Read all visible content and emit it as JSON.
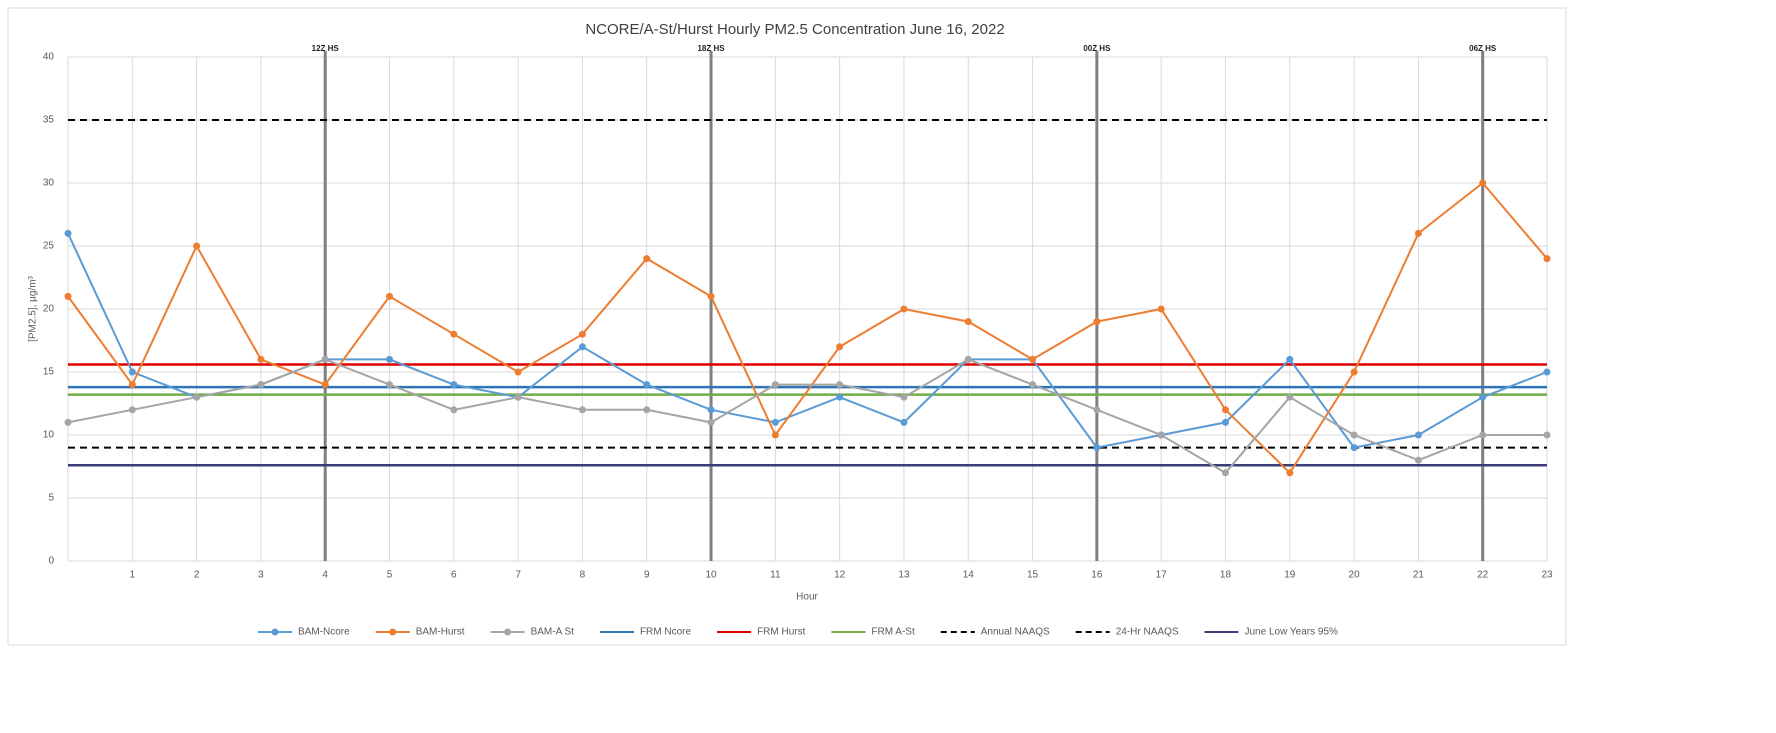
{
  "chart_data": {
    "type": "line",
    "title": "NCORE/A-St/Hurst Hourly PM2.5 Concentration June 16, 2022",
    "x_label": "Hour",
    "y_label": "[PM2.5], µg/m³",
    "x": [
      0,
      1,
      2,
      3,
      4,
      5,
      6,
      7,
      8,
      9,
      10,
      11,
      12,
      13,
      14,
      15,
      16,
      17,
      18,
      19,
      20,
      21,
      22,
      23
    ],
    "xlim": [
      0,
      23
    ],
    "xticks": [
      1,
      2,
      3,
      4,
      5,
      6,
      7,
      8,
      9,
      10,
      11,
      12,
      13,
      14,
      15,
      16,
      17,
      18,
      19,
      20,
      21,
      22,
      23
    ],
    "ylim": [
      0,
      40
    ],
    "yticks": [
      0,
      5,
      10,
      15,
      20,
      25,
      30,
      35,
      40
    ],
    "grid": true,
    "legend": "bottom",
    "series": [
      {
        "name": "BAM-Ncore",
        "color": "#5b9bd5",
        "values": [
          26,
          15,
          13,
          14,
          16,
          16,
          14,
          13,
          17,
          14,
          12,
          11,
          13,
          11,
          16,
          16,
          9,
          10,
          11,
          16,
          9,
          10,
          13,
          15
        ]
      },
      {
        "name": "BAM-Hurst",
        "color": "#ed7d31",
        "values": [
          21,
          14,
          25,
          16,
          14,
          21,
          18,
          15,
          18,
          24,
          21,
          10,
          17,
          20,
          19,
          16,
          19,
          20,
          12,
          7,
          15,
          26,
          30,
          24
        ]
      },
      {
        "name": "BAM-A St",
        "color": "#a5a5a5",
        "values": [
          11,
          12,
          13,
          14,
          16,
          14,
          12,
          13,
          12,
          12,
          11,
          14,
          14,
          13,
          16,
          14,
          12,
          10,
          7,
          13,
          10,
          8,
          10,
          10
        ]
      }
    ],
    "reference_lines": [
      {
        "name": "FRM Ncore",
        "color": "#2e75b6",
        "value": 13.8,
        "dashed": false
      },
      {
        "name": "FRM Hurst",
        "color": "#e00000",
        "value": 15.6,
        "dashed": false
      },
      {
        "name": "FRM A-St",
        "color": "#70ad47",
        "value": 13.2,
        "dashed": false
      },
      {
        "name": "Annual NAAQS",
        "color": "#000000",
        "value": 9,
        "dashed": true
      },
      {
        "name": "24-Hr NAAQS",
        "color": "#000000",
        "value": 35,
        "dashed": true
      },
      {
        "name": "June Low Years 95%",
        "color": "#3c3c78",
        "value": 7.6,
        "dashed": false
      }
    ],
    "annotations": [
      {
        "x": 4,
        "label": "12Z HS"
      },
      {
        "x": 10,
        "label": "18Z HS"
      },
      {
        "x": 16,
        "label": "00Z HS"
      },
      {
        "x": 22,
        "label": "06Z HS"
      }
    ]
  }
}
